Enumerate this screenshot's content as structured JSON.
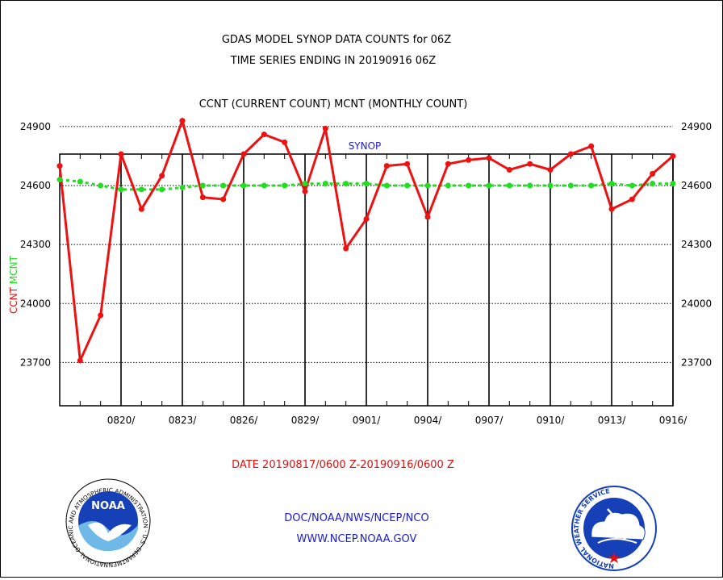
{
  "header": {
    "title_line1": "GDAS MODEL SYNOP DATA COUNTS for 06Z",
    "title_line2": "TIME SERIES ENDING IN 20190916 06Z",
    "subtitle": "CCNT (CURRENT COUNT) MCNT (MONTHLY COUNT)"
  },
  "footer": {
    "date_range": "DATE 20190817/0600 Z-20190916/0600 Z",
    "credit_line1": "DOC/NOAA/NWS/NCEP/NCO",
    "credit_line2": "WWW.NCEP.NOAA.GOV"
  },
  "logos": {
    "noaa_text": "NOAA",
    "noaa_ring_text": "NATIONAL OCEANIC AND ATMOSPHERIC ADMINISTRATION · U.S. DEPARTMENT OF COMMERCE ·",
    "nws_ring_text": "NATIONAL WEATHER SERVICE"
  },
  "colors": {
    "ccnt": "#ee1111",
    "mcnt": "#22dd22",
    "panel_title": "#1a1ad0",
    "date_text": "#dd1111",
    "credit_text": "#1a1ad0"
  },
  "chart_data": {
    "type": "line",
    "title": "SYNOP",
    "ylabel_ccnt": "CCNT",
    "ylabel_mcnt": "MCNT",
    "ylim": [
      23480,
      24760
    ],
    "yticks": [
      23700,
      24000,
      24300,
      24600,
      24900
    ],
    "grid": true,
    "xlim": [
      "2019-08-17",
      "2019-09-16"
    ],
    "x_tick_labels": [
      "0820/",
      "0823/",
      "0826/",
      "0829/",
      "0901/",
      "0904/",
      "0907/",
      "0910/",
      "0913/",
      "0916/"
    ],
    "x_tick_dates": [
      "2019-08-20",
      "2019-08-23",
      "2019-08-26",
      "2019-08-29",
      "2019-09-01",
      "2019-09-04",
      "2019-09-07",
      "2019-09-10",
      "2019-09-13",
      "2019-09-16"
    ],
    "x": [
      "2019-08-17",
      "2019-08-18",
      "2019-08-19",
      "2019-08-20",
      "2019-08-21",
      "2019-08-22",
      "2019-08-23",
      "2019-08-24",
      "2019-08-25",
      "2019-08-26",
      "2019-08-27",
      "2019-08-28",
      "2019-08-29",
      "2019-08-30",
      "2019-08-31",
      "2019-09-01",
      "2019-09-02",
      "2019-09-03",
      "2019-09-04",
      "2019-09-05",
      "2019-09-06",
      "2019-09-07",
      "2019-09-08",
      "2019-09-09",
      "2019-09-10",
      "2019-09-11",
      "2019-09-12",
      "2019-09-13",
      "2019-09-14",
      "2019-09-15",
      "2019-09-16"
    ],
    "series": [
      {
        "name": "CCNT",
        "values": [
          24700,
          23710,
          23940,
          24760,
          24480,
          24650,
          24930,
          24540,
          24530,
          24760,
          24860,
          24820,
          24570,
          24890,
          24280,
          24430,
          24700,
          24710,
          24440,
          24710,
          24730,
          24740,
          24680,
          24710,
          24680,
          24760,
          24800,
          24480,
          24530,
          24660,
          24750
        ]
      },
      {
        "name": "MCNT",
        "values": [
          24630,
          24620,
          24600,
          24580,
          24580,
          24580,
          24590,
          24600,
          24600,
          24600,
          24600,
          24600,
          24610,
          24610,
          24610,
          24610,
          24600,
          24600,
          24600,
          24600,
          24600,
          24600,
          24600,
          24600,
          24600,
          24600,
          24600,
          24610,
          24600,
          24610,
          24610
        ]
      }
    ]
  }
}
